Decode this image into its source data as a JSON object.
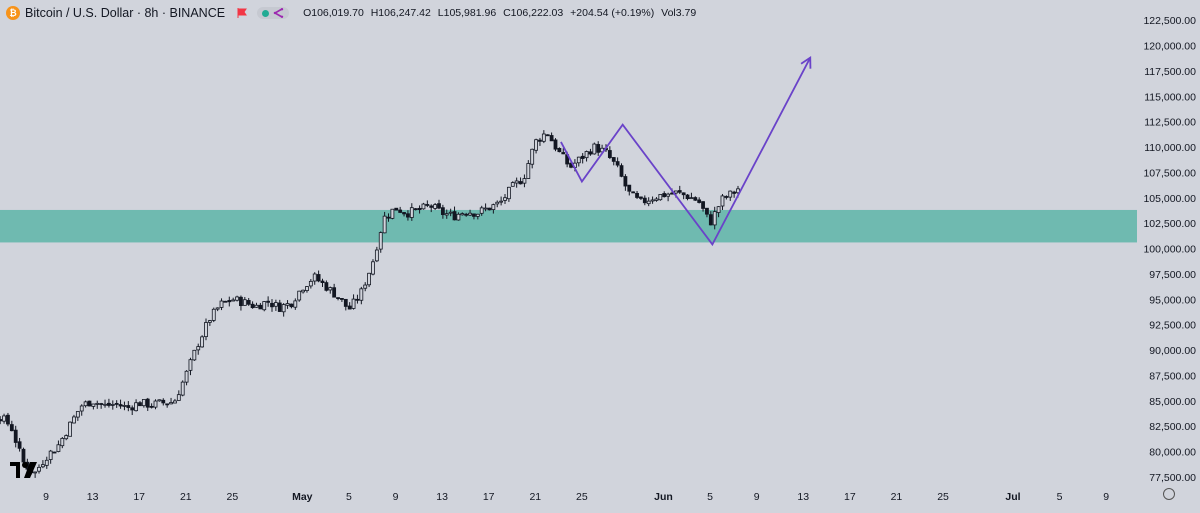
{
  "header": {
    "logo_glyph": "₿",
    "title": "Bitcoin / U.S. Dollar · 8h · BINANCE",
    "ohlc": {
      "open": "O106,019.70",
      "high": "H106,247.42",
      "low": "L105,981.96",
      "close": "C106,222.03",
      "change": "+204.54 (+0.19%)",
      "volume": "Vol3.79"
    }
  },
  "colors": {
    "background": "#d1d4dc",
    "candle": "#131722",
    "candle_body_fill_up": "#d1d4dc",
    "zone": "#6fbab0",
    "pattern_line": "#6a43c9",
    "logo": "#f7931a"
  },
  "icons": [
    "bitcoin-logo-icon",
    "red-flag-icon",
    "dot-icon",
    "share-icon",
    "tradingview-logo-icon",
    "settings-icon"
  ],
  "chart_data": {
    "type": "candlestick",
    "timeframe": "8h",
    "y_ticks": [
      "122,500.00",
      "120,000.00",
      "117,500.00",
      "115,000.00",
      "112,500.00",
      "110,000.00",
      "107,500.00",
      "105,000.00",
      "102,500.00",
      "100,000.00",
      "97,500.00",
      "95,000.00",
      "92,500.00",
      "90,000.00",
      "87,500.00",
      "85,000.00",
      "82,500.00",
      "80,000.00",
      "77,500.00"
    ],
    "ylim": [
      77000,
      123300
    ],
    "x_ticks": [
      {
        "label": "9",
        "day": 9
      },
      {
        "label": "13",
        "day": 13
      },
      {
        "label": "17",
        "day": 17
      },
      {
        "label": "21",
        "day": 21
      },
      {
        "label": "25",
        "day": 25
      },
      {
        "label": "May",
        "day": 31,
        "bold": true
      },
      {
        "label": "5",
        "day": 35
      },
      {
        "label": "9",
        "day": 39
      },
      {
        "label": "13",
        "day": 43
      },
      {
        "label": "17",
        "day": 47
      },
      {
        "label": "21",
        "day": 51
      },
      {
        "label": "25",
        "day": 55
      },
      {
        "label": "Jun",
        "day": 62,
        "bold": true
      },
      {
        "label": "5",
        "day": 66
      },
      {
        "label": "9",
        "day": 70
      },
      {
        "label": "13",
        "day": 74
      },
      {
        "label": "17",
        "day": 78
      },
      {
        "label": "21",
        "day": 82
      },
      {
        "label": "25",
        "day": 86
      },
      {
        "label": "Jul",
        "day": 92,
        "bold": true
      },
      {
        "label": "5",
        "day": 96
      },
      {
        "label": "9",
        "day": 100
      }
    ],
    "support_zone": [
      100600,
      103800
    ],
    "price_path": [
      [
        5,
        83500
      ],
      [
        6,
        82500
      ],
      [
        7,
        79000
      ],
      [
        8,
        77800
      ],
      [
        9,
        79500
      ],
      [
        10,
        80500
      ],
      [
        11,
        82500
      ],
      [
        12,
        84500
      ],
      [
        13,
        85000
      ],
      [
        14,
        84500
      ],
      [
        15,
        84700
      ],
      [
        16,
        84300
      ],
      [
        17,
        84800
      ],
      [
        18,
        84600
      ],
      [
        19,
        84800
      ],
      [
        20,
        84900
      ],
      [
        21,
        87500
      ],
      [
        22,
        90500
      ],
      [
        23,
        93000
      ],
      [
        24,
        94500
      ],
      [
        25,
        95000
      ],
      [
        26,
        94700
      ],
      [
        27,
        94300
      ],
      [
        28,
        94800
      ],
      [
        29,
        94200
      ],
      [
        30,
        94600
      ],
      [
        31,
        96200
      ],
      [
        32,
        97200
      ],
      [
        33,
        96300
      ],
      [
        34,
        95300
      ],
      [
        35,
        94000
      ],
      [
        36,
        95500
      ],
      [
        37,
        98500
      ],
      [
        38,
        103000
      ],
      [
        39,
        104000
      ],
      [
        40,
        103500
      ],
      [
        41,
        103800
      ],
      [
        42,
        104200
      ],
      [
        43,
        103500
      ],
      [
        44,
        103200
      ],
      [
        45,
        103700
      ],
      [
        46,
        103500
      ],
      [
        47,
        104000
      ],
      [
        48,
        104500
      ],
      [
        49,
        106000
      ],
      [
        50,
        107000
      ],
      [
        51,
        110500
      ],
      [
        52,
        111500
      ],
      [
        53,
        109500
      ],
      [
        54,
        108000
      ],
      [
        55,
        109000
      ],
      [
        56,
        110000
      ],
      [
        57,
        109500
      ],
      [
        58,
        108000
      ],
      [
        59,
        105500
      ],
      [
        60,
        104500
      ],
      [
        61,
        105000
      ],
      [
        62,
        105300
      ],
      [
        63,
        105500
      ],
      [
        64,
        105200
      ],
      [
        65,
        104700
      ],
      [
        66,
        102500
      ],
      [
        67,
        104800
      ],
      [
        68,
        105500
      ],
      [
        68.7,
        106200
      ]
    ],
    "pattern_lines": [
      {
        "name": "zigzag",
        "points": [
          [
            53.2,
            110500
          ],
          [
            55,
            106600
          ],
          [
            58.5,
            112200
          ],
          [
            66.2,
            100400
          ],
          [
            74.6,
            118800
          ]
        ]
      }
    ]
  }
}
